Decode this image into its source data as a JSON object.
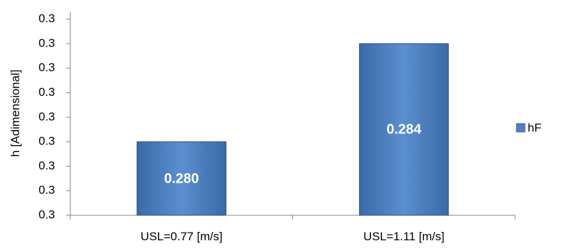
{
  "chart_data": {
    "type": "bar",
    "title": "",
    "xlabel": "",
    "ylabel": "h [Adimensional]",
    "categories": [
      "USL=0.77 [m/s]",
      "USL=1.11 [m/s]"
    ],
    "series": [
      {
        "name": "hF",
        "values": [
          0.28,
          0.284
        ],
        "data_labels": [
          "0.280",
          "0.284"
        ],
        "color": "#4F81BD"
      }
    ],
    "ylim": [
      0.277,
      0.2853
    ],
    "y_ticks": [
      0.277,
      0.278,
      0.279,
      0.28,
      0.281,
      0.282,
      0.283,
      0.284,
      0.285
    ],
    "y_tick_labels": [
      "0.3",
      "0.3",
      "0.3",
      "0.3",
      "0.3",
      "0.3",
      "0.3",
      "0.3",
      "0.3"
    ],
    "grid": false,
    "legend_position": "right"
  }
}
